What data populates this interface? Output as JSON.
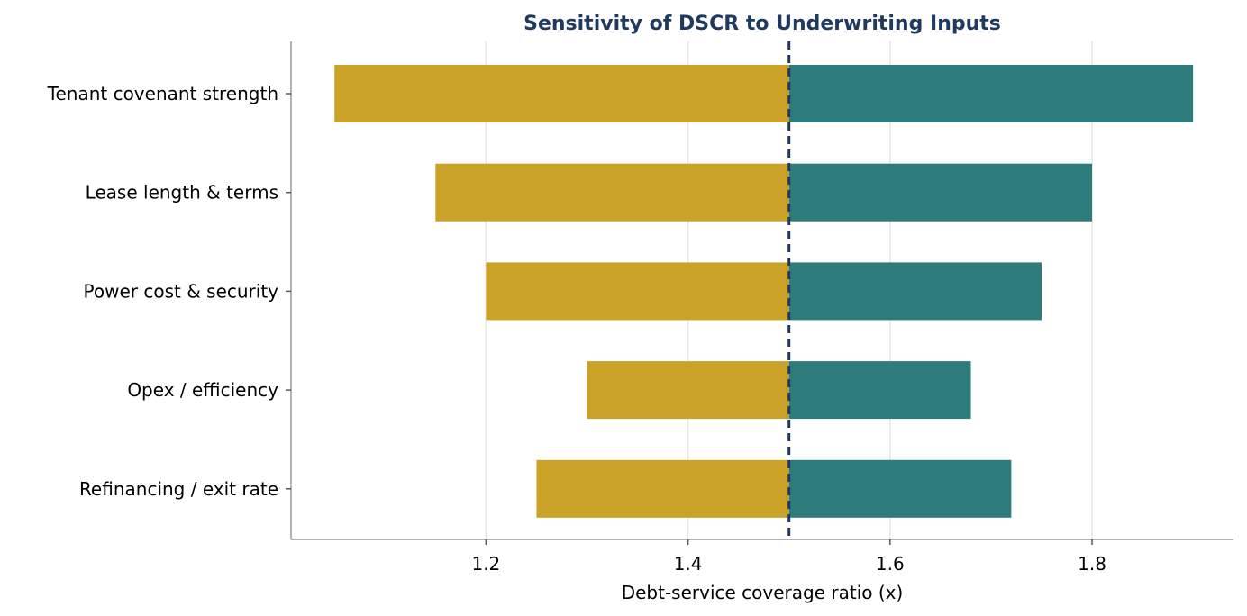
{
  "chart_data": {
    "type": "bar",
    "orientation": "horizontal",
    "subtype": "tornado",
    "title": "Sensitivity of DSCR to Underwriting Inputs",
    "xlabel": "Debt-service coverage ratio (x)",
    "ylabel": "",
    "xlim": [
      1.007,
      1.94
    ],
    "xticks": [
      1.2,
      1.4,
      1.6,
      1.8
    ],
    "xtick_labels": [
      "1.2",
      "1.4",
      "1.6",
      "1.8"
    ],
    "baseline": 1.5,
    "categories": [
      "Tenant covenant strength",
      "Lease length & terms",
      "Power cost & security",
      "Opex / efficiency",
      "Refinancing / exit rate"
    ],
    "series": [
      {
        "values": [
          1.05,
          1.15,
          1.2,
          1.3,
          1.25
        ]
      },
      {
        "values": [
          1.9,
          1.8,
          1.75,
          1.68,
          1.72
        ]
      }
    ],
    "grid": "vertical",
    "legend": "none"
  },
  "colors": {
    "low": "#c9a227",
    "high": "#2e7b7c",
    "baseline": "#1f3a5f",
    "title": "#1f3a5f",
    "grid": "#e5e5e5",
    "axis": "#999999"
  }
}
